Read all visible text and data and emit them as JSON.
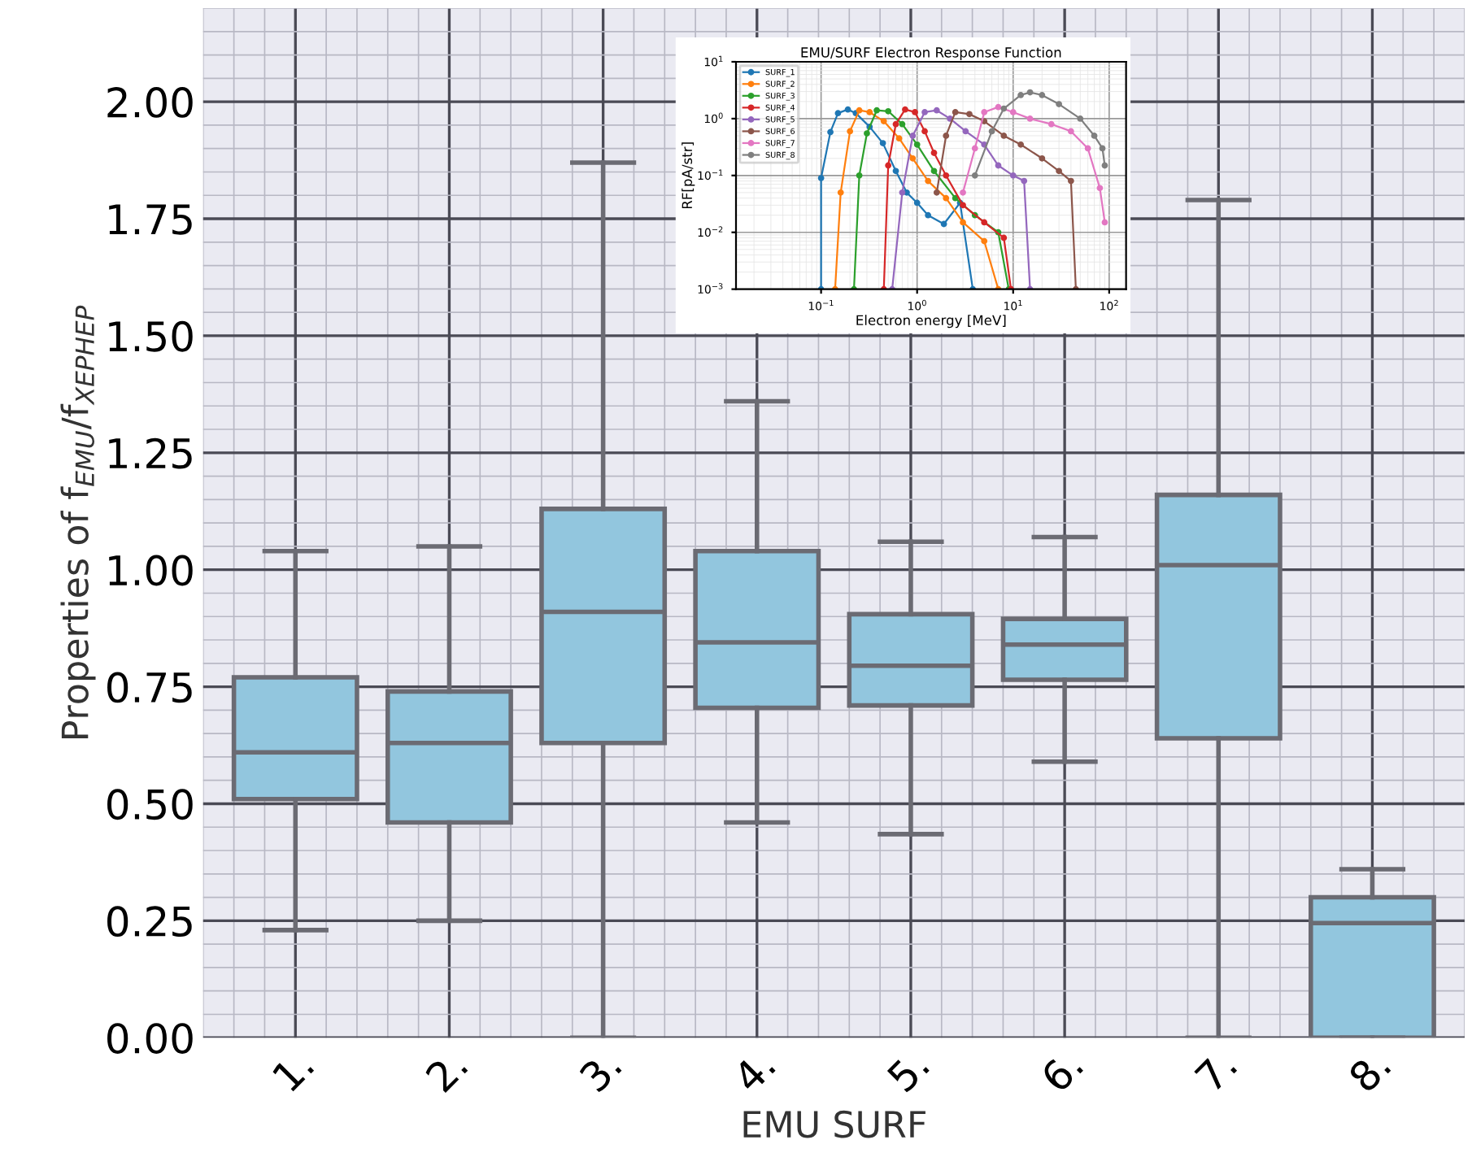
{
  "chart_data": [
    {
      "type": "box",
      "xlabel": "EMU SURF",
      "ylabel": "Properties of f$_{EMU}$/f$_{XEPHEP}$",
      "categories": [
        "1.",
        "2.",
        "3.",
        "4.",
        "5.",
        "6.",
        "7.",
        "8."
      ],
      "color": "#92c6de",
      "boxes": [
        {
          "low": 0.23,
          "q1": 0.51,
          "median": 0.61,
          "q3": 0.77,
          "high": 1.04
        },
        {
          "low": 0.25,
          "q1": 0.46,
          "median": 0.63,
          "q3": 0.74,
          "high": 1.05
        },
        {
          "low": 0.0,
          "q1": 0.63,
          "median": 0.91,
          "q3": 1.13,
          "high": 1.87
        },
        {
          "low": 0.46,
          "q1": 0.705,
          "median": 0.845,
          "q3": 1.04,
          "high": 1.36
        },
        {
          "low": 0.435,
          "q1": 0.71,
          "median": 0.795,
          "q3": 0.905,
          "high": 1.06
        },
        {
          "low": 0.59,
          "q1": 0.765,
          "median": 0.84,
          "q3": 0.895,
          "high": 1.07
        },
        {
          "low": 0.0,
          "q1": 0.64,
          "median": 1.01,
          "q3": 1.16,
          "high": 1.79
        },
        {
          "low": 0.0,
          "q1": 0.0,
          "median": 0.245,
          "q3": 0.3,
          "high": 0.36
        }
      ],
      "ylim": [
        0,
        2.2
      ],
      "yticks": [
        {
          "value": 0,
          "label": "0.00"
        },
        {
          "value": 0.25,
          "label": "0.25"
        },
        {
          "value": 0.5,
          "label": "0.50"
        },
        {
          "value": 0.75,
          "label": "0.75"
        },
        {
          "value": 1,
          "label": "1.00"
        },
        {
          "value": 1.25,
          "label": "1.25"
        },
        {
          "value": 1.5,
          "label": "1.50"
        },
        {
          "value": 1.75,
          "label": "1.75"
        },
        {
          "value": 2,
          "label": "2.00"
        }
      ],
      "grid": true
    },
    {
      "type": "line",
      "title": "EMU/SURF Electron Response Function",
      "xlabel": "Electron energy [MeV]",
      "ylabel": "RF[pA/str]",
      "log": "xy",
      "marker": "circle",
      "legend": "top left",
      "grid": true,
      "xlim": [
        0.013,
        150
      ],
      "ylim": [
        0.001,
        10
      ],
      "xticks": [
        {
          "value": 0.1,
          "label": "10$^{−1}$"
        },
        {
          "value": 1,
          "label": "10$^{0}$"
        },
        {
          "value": 10,
          "label": "10$^{1}$"
        },
        {
          "value": 100,
          "label": "10$^{2}$"
        }
      ],
      "yticks": [
        {
          "value": 0.001,
          "label": "10$^{−3}$"
        },
        {
          "value": 0.01,
          "label": "10$^{−2}$"
        },
        {
          "value": 0.1,
          "label": "10$^{−1}$"
        },
        {
          "value": 1,
          "label": "10$^{0}$"
        },
        {
          "value": 10,
          "label": "10$^{1}$"
        }
      ],
      "series": [
        {
          "name": "SURF_1",
          "color": "#1f77b4",
          "x": [
            0.1,
            0.1,
            0.125,
            0.15,
            0.19,
            0.23,
            0.32,
            0.44,
            0.6,
            0.78,
            1.0,
            1.3,
            1.9,
            2.8,
            3.8
          ],
          "values": [
            0.001,
            0.09,
            0.58,
            1.25,
            1.45,
            1.25,
            0.72,
            0.37,
            0.12,
            0.05,
            0.033,
            0.02,
            0.014,
            0.033,
            0.001
          ]
        },
        {
          "name": "SURF_2",
          "color": "#ff7f0e",
          "x": [
            0.14,
            0.16,
            0.2,
            0.25,
            0.32,
            0.45,
            0.65,
            0.9,
            1.3,
            2,
            3,
            5,
            7
          ],
          "values": [
            0.001,
            0.05,
            0.6,
            1.4,
            1.3,
            0.9,
            0.45,
            0.2,
            0.08,
            0.04,
            0.015,
            0.007,
            0.001
          ]
        },
        {
          "name": "SURF_3",
          "color": "#2ca02c",
          "x": [
            0.22,
            0.25,
            0.3,
            0.38,
            0.5,
            0.7,
            1.0,
            1.5,
            2.5,
            4,
            7,
            9
          ],
          "values": [
            0.001,
            0.1,
            0.55,
            1.4,
            1.35,
            0.8,
            0.35,
            0.12,
            0.04,
            0.02,
            0.01,
            0.001
          ]
        },
        {
          "name": "SURF_4",
          "color": "#d62728",
          "x": [
            0.45,
            0.5,
            0.6,
            0.75,
            0.95,
            1.2,
            1.5,
            2,
            3,
            5,
            8,
            9.5
          ],
          "values": [
            0.001,
            0.15,
            0.8,
            1.45,
            1.3,
            0.6,
            0.25,
            0.1,
            0.03,
            0.015,
            0.008,
            0.001
          ]
        },
        {
          "name": "SURF_5",
          "color": "#9467bd",
          "x": [
            0.55,
            0.7,
            0.9,
            1.2,
            1.6,
            2.2,
            3.2,
            5,
            7,
            10,
            13,
            15
          ],
          "values": [
            0.001,
            0.05,
            0.5,
            1.3,
            1.4,
            1.0,
            0.6,
            0.35,
            0.15,
            0.1,
            0.08,
            0.001
          ]
        },
        {
          "name": "SURF_6",
          "color": "#8c564b",
          "x": [
            1.6,
            2,
            2.5,
            3.5,
            5,
            8,
            12,
            20,
            30,
            40,
            45
          ],
          "values": [
            0.05,
            0.5,
            1.3,
            1.2,
            0.9,
            0.5,
            0.35,
            0.2,
            0.12,
            0.08,
            0.001
          ]
        },
        {
          "name": "SURF_7",
          "color": "#e377c2",
          "x": [
            3,
            4,
            5,
            7,
            10,
            15,
            25,
            40,
            60,
            80,
            90
          ],
          "values": [
            0.05,
            0.3,
            1.3,
            1.6,
            1.3,
            1.0,
            0.8,
            0.6,
            0.3,
            0.06,
            0.015
          ]
        },
        {
          "name": "SURF_8",
          "color": "#7f7f7f",
          "x": [
            4,
            6,
            8,
            12,
            15,
            20,
            30,
            50,
            70,
            85,
            90
          ],
          "values": [
            0.1,
            0.6,
            1.5,
            2.6,
            2.9,
            2.6,
            1.8,
            1.0,
            0.5,
            0.3,
            0.15
          ]
        }
      ]
    }
  ]
}
